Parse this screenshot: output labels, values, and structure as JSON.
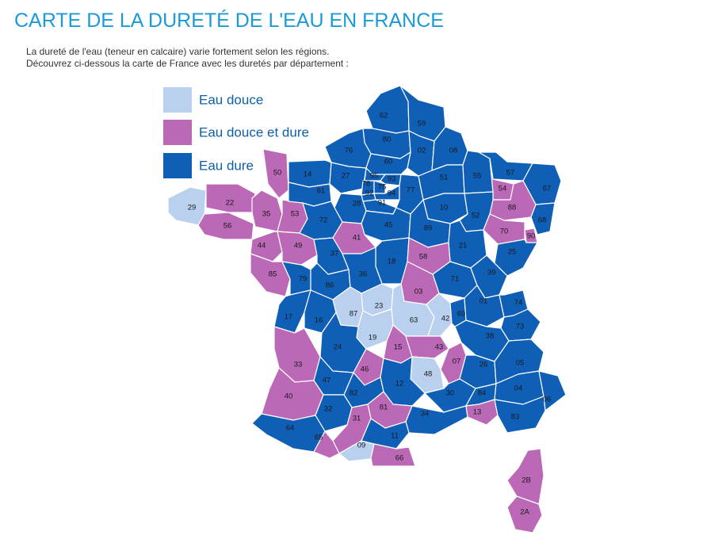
{
  "page": {
    "title": "CARTE DE LA DURETÉ DE L'EAU EN FRANCE",
    "intro_line1": "La dureté de l'eau (teneur en calcaire) varie fortement selon les régions.",
    "intro_line2": "Découvrez ci-dessous la carte de France avec les duretés par département :"
  },
  "colors": {
    "douce": "#b9d0ee",
    "mixte": "#bb68b6",
    "dure": "#0f5fb6"
  },
  "legend": [
    {
      "key": "douce",
      "label": "Eau douce"
    },
    {
      "key": "mixte",
      "label": "Eau douce et dure"
    },
    {
      "key": "dure",
      "label": "Eau dure"
    }
  ],
  "departments": [
    {
      "code": "62",
      "cls": "dure"
    },
    {
      "code": "59",
      "cls": "dure"
    },
    {
      "code": "80",
      "cls": "dure"
    },
    {
      "code": "02",
      "cls": "dure"
    },
    {
      "code": "08",
      "cls": "dure"
    },
    {
      "code": "76",
      "cls": "dure"
    },
    {
      "code": "60",
      "cls": "dure"
    },
    {
      "code": "50",
      "cls": "mixte"
    },
    {
      "code": "14",
      "cls": "dure"
    },
    {
      "code": "27",
      "cls": "dure"
    },
    {
      "code": "95",
      "cls": "dure"
    },
    {
      "code": "93",
      "cls": "dure"
    },
    {
      "code": "78",
      "cls": "dure"
    },
    {
      "code": "75",
      "cls": "dure"
    },
    {
      "code": "92",
      "cls": "dure"
    },
    {
      "code": "94",
      "cls": "dure"
    },
    {
      "code": "77",
      "cls": "dure"
    },
    {
      "code": "91",
      "cls": "dure"
    },
    {
      "code": "51",
      "cls": "dure"
    },
    {
      "code": "55",
      "cls": "dure"
    },
    {
      "code": "57",
      "cls": "dure"
    },
    {
      "code": "67",
      "cls": "dure"
    },
    {
      "code": "54",
      "cls": "mixte"
    },
    {
      "code": "88",
      "cls": "mixte"
    },
    {
      "code": "68",
      "cls": "dure"
    },
    {
      "code": "29",
      "cls": "douce"
    },
    {
      "code": "22",
      "cls": "mixte"
    },
    {
      "code": "56",
      "cls": "mixte"
    },
    {
      "code": "35",
      "cls": "mixte"
    },
    {
      "code": "53",
      "cls": "mixte"
    },
    {
      "code": "61",
      "cls": "dure"
    },
    {
      "code": "28",
      "cls": "dure"
    },
    {
      "code": "72",
      "cls": "dure"
    },
    {
      "code": "10",
      "cls": "dure"
    },
    {
      "code": "52",
      "cls": "dure"
    },
    {
      "code": "45",
      "cls": "dure"
    },
    {
      "code": "89",
      "cls": "dure"
    },
    {
      "code": "70",
      "cls": "mixte"
    },
    {
      "code": "90",
      "cls": "mixte"
    },
    {
      "code": "44",
      "cls": "mixte"
    },
    {
      "code": "49",
      "cls": "mixte"
    },
    {
      "code": "41",
      "cls": "mixte"
    },
    {
      "code": "21",
      "cls": "dure"
    },
    {
      "code": "25",
      "cls": "dure"
    },
    {
      "code": "37",
      "cls": "dure"
    },
    {
      "code": "18",
      "cls": "dure"
    },
    {
      "code": "58",
      "cls": "mixte"
    },
    {
      "code": "85",
      "cls": "mixte"
    },
    {
      "code": "79",
      "cls": "dure"
    },
    {
      "code": "86",
      "cls": "dure"
    },
    {
      "code": "36",
      "cls": "dure"
    },
    {
      "code": "71",
      "cls": "dure"
    },
    {
      "code": "39",
      "cls": "dure"
    },
    {
      "code": "03",
      "cls": "mixte"
    },
    {
      "code": "17",
      "cls": "dure"
    },
    {
      "code": "16",
      "cls": "dure"
    },
    {
      "code": "87",
      "cls": "douce"
    },
    {
      "code": "23",
      "cls": "douce"
    },
    {
      "code": "63",
      "cls": "douce"
    },
    {
      "code": "42",
      "cls": "douce"
    },
    {
      "code": "69",
      "cls": "dure"
    },
    {
      "code": "01",
      "cls": "dure"
    },
    {
      "code": "74",
      "cls": "dure"
    },
    {
      "code": "73",
      "cls": "dure"
    },
    {
      "code": "38",
      "cls": "dure"
    },
    {
      "code": "19",
      "cls": "douce"
    },
    {
      "code": "24",
      "cls": "dure"
    },
    {
      "code": "15",
      "cls": "mixte"
    },
    {
      "code": "43",
      "cls": "mixte"
    },
    {
      "code": "33",
      "cls": "mixte"
    },
    {
      "code": "46",
      "cls": "mixte"
    },
    {
      "code": "07",
      "cls": "mixte"
    },
    {
      "code": "26",
      "cls": "dure"
    },
    {
      "code": "05",
      "cls": "dure"
    },
    {
      "code": "48",
      "cls": "douce"
    },
    {
      "code": "47",
      "cls": "dure"
    },
    {
      "code": "12",
      "cls": "dure"
    },
    {
      "code": "30",
      "cls": "dure"
    },
    {
      "code": "84",
      "cls": "dure"
    },
    {
      "code": "04",
      "cls": "dure"
    },
    {
      "code": "06",
      "cls": "dure"
    },
    {
      "code": "40",
      "cls": "mixte"
    },
    {
      "code": "82",
      "cls": "dure"
    },
    {
      "code": "81",
      "cls": "mixte"
    },
    {
      "code": "32",
      "cls": "dure"
    },
    {
      "code": "31",
      "cls": "mixte"
    },
    {
      "code": "34",
      "cls": "dure"
    },
    {
      "code": "13",
      "cls": "mixte"
    },
    {
      "code": "83",
      "cls": "dure"
    },
    {
      "code": "64",
      "cls": "dure"
    },
    {
      "code": "65",
      "cls": "mixte"
    },
    {
      "code": "09",
      "cls": "douce"
    },
    {
      "code": "11",
      "cls": "dure"
    },
    {
      "code": "66",
      "cls": "mixte"
    },
    {
      "code": "2B",
      "cls": "mixte"
    },
    {
      "code": "2A",
      "cls": "mixte"
    }
  ]
}
